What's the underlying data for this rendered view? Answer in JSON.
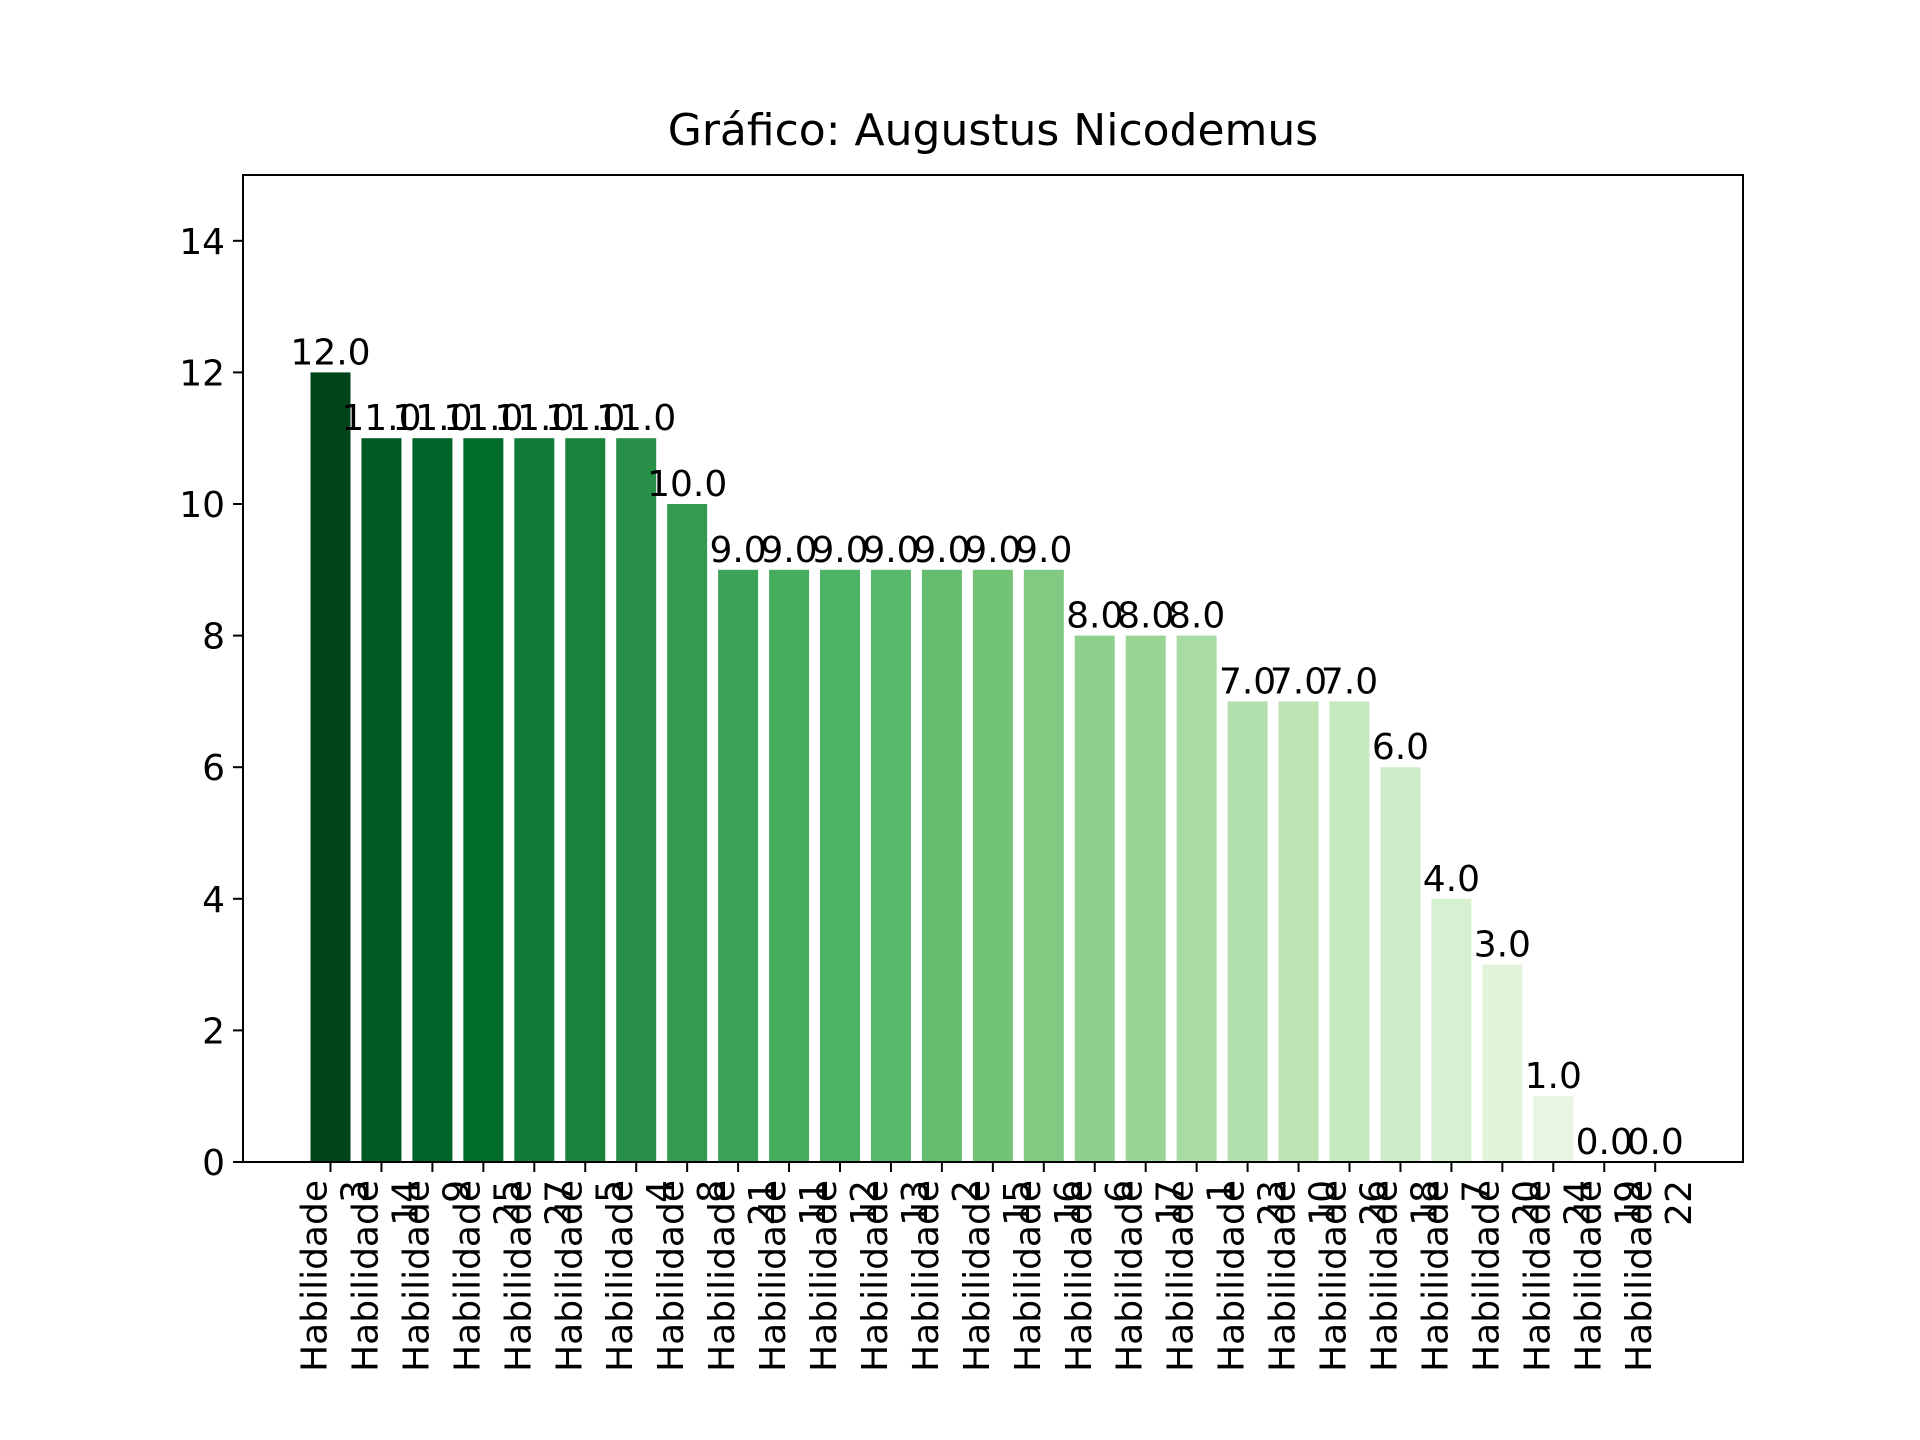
{
  "chart_data": {
    "type": "bar",
    "title": "Gráfico: Augustus Nicodemus",
    "xlabel": "",
    "ylabel": "",
    "ylim": [
      0,
      15
    ],
    "yticks": [
      0,
      2,
      4,
      6,
      8,
      10,
      12,
      14
    ],
    "grid": false,
    "legend": "none",
    "colormap": "Greens (reversed, dark to light)",
    "categories": [
      "Habilidade 3",
      "Habilidade 14",
      "Habilidade 9",
      "Habilidade 25",
      "Habilidade 27",
      "Habilidade 5",
      "Habilidade 4",
      "Habilidade 8",
      "Habilidade 21",
      "Habilidade 11",
      "Habilidade 12",
      "Habilidade 13",
      "Habilidade 2",
      "Habilidade 15",
      "Habilidade 16",
      "Habilidade 6",
      "Habilidade 17",
      "Habilidade 1",
      "Habilidade 23",
      "Habilidade 10",
      "Habilidade 26",
      "Habilidade 18",
      "Habilidade 7",
      "Habilidade 20",
      "Habilidade 24",
      "Habilidade 19",
      "Habilidade 22"
    ],
    "values": [
      12,
      11,
      11,
      11,
      11,
      11,
      11,
      10,
      9,
      9,
      9,
      9,
      9,
      9,
      9,
      8,
      8,
      8,
      7,
      7,
      7,
      6,
      4,
      3,
      1,
      0,
      0
    ],
    "value_labels": [
      "12.0",
      "11.0",
      "11.0",
      "11.0",
      "11.0",
      "11.0",
      "11.0",
      "10.0",
      "9.0",
      "9.0",
      "9.0",
      "9.0",
      "9.0",
      "9.0",
      "9.0",
      "8.0",
      "8.0",
      "8.0",
      "7.0",
      "7.0",
      "7.0",
      "6.0",
      "4.0",
      "3.0",
      "1.0",
      "0.0",
      "0.0"
    ],
    "colors": [
      "#00441b",
      "#005a24",
      "#006328",
      "#006c2c",
      "#107a38",
      "#1a843f",
      "#278f48",
      "#329b51",
      "#3ba458",
      "#44ad5e",
      "#4eb264",
      "#58b86c",
      "#64bd6f",
      "#72c375",
      "#81ca81",
      "#8ed08b",
      "#9bd595",
      "#a8dca2",
      "#b2e0ac",
      "#bce4b5",
      "#c7e9c0",
      "#cfecc9",
      "#d8f0d2",
      "#e0f3db",
      "#e8f6e3",
      "#eff9ec",
      "#f7fcf5"
    ]
  }
}
